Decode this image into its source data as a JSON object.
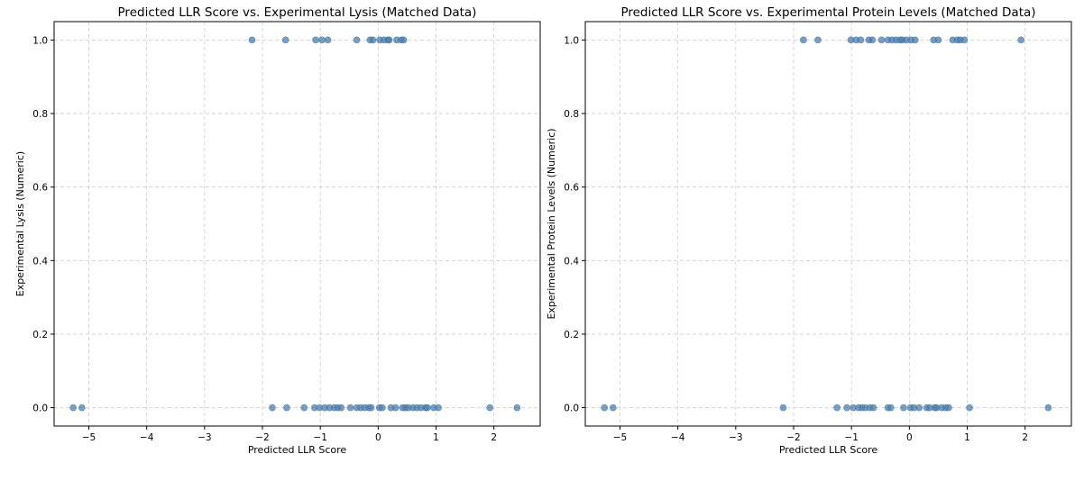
{
  "chart_data": [
    {
      "type": "scatter",
      "title": "Predicted LLR Score vs. Experimental Lysis (Matched Data)",
      "xlabel": "Predicted LLR Score",
      "ylabel": "Experimental Lysis (Numeric)",
      "xlim": [
        -5.6,
        2.8
      ],
      "ylim": [
        -0.05,
        1.05
      ],
      "xticks": [
        -5,
        -4,
        -3,
        -2,
        -1,
        0,
        1,
        2
      ],
      "yticks": [
        0.0,
        0.2,
        0.4,
        0.6,
        0.8,
        1.0
      ],
      "xtick_labels": [
        "−5",
        "−4",
        "−3",
        "−2",
        "−1",
        "0",
        "1",
        "2"
      ],
      "ytick_labels": [
        "0.0",
        "0.2",
        "0.4",
        "0.6",
        "0.8",
        "1.0"
      ],
      "grid": true,
      "points": [
        {
          "x": -2.18,
          "y": 1
        },
        {
          "x": -1.6,
          "y": 1
        },
        {
          "x": -1.08,
          "y": 1
        },
        {
          "x": -0.97,
          "y": 1
        },
        {
          "x": -0.87,
          "y": 1
        },
        {
          "x": -0.37,
          "y": 1
        },
        {
          "x": -0.14,
          "y": 1
        },
        {
          "x": -0.09,
          "y": 1
        },
        {
          "x": 0.03,
          "y": 1
        },
        {
          "x": 0.1,
          "y": 1
        },
        {
          "x": 0.17,
          "y": 1
        },
        {
          "x": 0.19,
          "y": 1
        },
        {
          "x": 0.32,
          "y": 1
        },
        {
          "x": 0.4,
          "y": 1
        },
        {
          "x": 0.44,
          "y": 1
        },
        {
          "x": -5.27,
          "y": 0
        },
        {
          "x": -5.12,
          "y": 0
        },
        {
          "x": -1.83,
          "y": 0
        },
        {
          "x": -1.58,
          "y": 0
        },
        {
          "x": -1.28,
          "y": 0
        },
        {
          "x": -1.1,
          "y": 0
        },
        {
          "x": -1.01,
          "y": 0
        },
        {
          "x": -0.92,
          "y": 0
        },
        {
          "x": -0.84,
          "y": 0
        },
        {
          "x": -0.76,
          "y": 0
        },
        {
          "x": -0.7,
          "y": 0
        },
        {
          "x": -0.64,
          "y": 0
        },
        {
          "x": -0.48,
          "y": 0
        },
        {
          "x": -0.37,
          "y": 0
        },
        {
          "x": -0.3,
          "y": 0
        },
        {
          "x": -0.23,
          "y": 0
        },
        {
          "x": -0.16,
          "y": 0
        },
        {
          "x": -0.12,
          "y": 0
        },
        {
          "x": 0.02,
          "y": 0
        },
        {
          "x": 0.07,
          "y": 0
        },
        {
          "x": 0.22,
          "y": 0
        },
        {
          "x": 0.3,
          "y": 0
        },
        {
          "x": 0.42,
          "y": 0
        },
        {
          "x": 0.47,
          "y": 0
        },
        {
          "x": 0.52,
          "y": 0
        },
        {
          "x": 0.6,
          "y": 0
        },
        {
          "x": 0.67,
          "y": 0
        },
        {
          "x": 0.74,
          "y": 0
        },
        {
          "x": 0.82,
          "y": 0
        },
        {
          "x": 0.85,
          "y": 0
        },
        {
          "x": 0.96,
          "y": 0
        },
        {
          "x": 1.04,
          "y": 0
        },
        {
          "x": 1.93,
          "y": 0
        },
        {
          "x": 2.4,
          "y": 0
        }
      ]
    },
    {
      "type": "scatter",
      "title": "Predicted LLR Score vs. Experimental Protein Levels (Matched Data)",
      "xlabel": "Predicted LLR Score",
      "ylabel": "Experimental Protein Levels (Numeric)",
      "xlim": [
        -5.6,
        2.8
      ],
      "ylim": [
        -0.05,
        1.05
      ],
      "xticks": [
        -5,
        -4,
        -3,
        -2,
        -1,
        0,
        1,
        2
      ],
      "yticks": [
        0.0,
        0.2,
        0.4,
        0.6,
        0.8,
        1.0
      ],
      "xtick_labels": [
        "−5",
        "−4",
        "−3",
        "−2",
        "−1",
        "0",
        "1",
        "2"
      ],
      "ytick_labels": [
        "0.0",
        "0.2",
        "0.4",
        "0.6",
        "0.8",
        "1.0"
      ],
      "grid": true,
      "points": [
        {
          "x": -1.83,
          "y": 1
        },
        {
          "x": -1.58,
          "y": 1
        },
        {
          "x": -1.01,
          "y": 1
        },
        {
          "x": -0.92,
          "y": 1
        },
        {
          "x": -0.84,
          "y": 1
        },
        {
          "x": -0.7,
          "y": 1
        },
        {
          "x": -0.64,
          "y": 1
        },
        {
          "x": -0.48,
          "y": 1
        },
        {
          "x": -0.37,
          "y": 1
        },
        {
          "x": -0.3,
          "y": 1
        },
        {
          "x": -0.23,
          "y": 1
        },
        {
          "x": -0.16,
          "y": 1
        },
        {
          "x": -0.12,
          "y": 1
        },
        {
          "x": -0.05,
          "y": 1
        },
        {
          "x": 0.03,
          "y": 1
        },
        {
          "x": 0.1,
          "y": 1
        },
        {
          "x": 0.42,
          "y": 1
        },
        {
          "x": 0.5,
          "y": 1
        },
        {
          "x": 0.75,
          "y": 1
        },
        {
          "x": 0.83,
          "y": 1
        },
        {
          "x": 0.88,
          "y": 1
        },
        {
          "x": 0.95,
          "y": 1
        },
        {
          "x": 1.93,
          "y": 1
        },
        {
          "x": -5.27,
          "y": 0
        },
        {
          "x": -5.12,
          "y": 0
        },
        {
          "x": -2.18,
          "y": 0
        },
        {
          "x": -1.25,
          "y": 0
        },
        {
          "x": -1.08,
          "y": 0
        },
        {
          "x": -0.97,
          "y": 0
        },
        {
          "x": -0.88,
          "y": 0
        },
        {
          "x": -0.82,
          "y": 0
        },
        {
          "x": -0.76,
          "y": 0
        },
        {
          "x": -0.68,
          "y": 0
        },
        {
          "x": -0.62,
          "y": 0
        },
        {
          "x": -0.37,
          "y": 0
        },
        {
          "x": -0.32,
          "y": 0
        },
        {
          "x": -0.1,
          "y": 0
        },
        {
          "x": 0.02,
          "y": 0
        },
        {
          "x": 0.08,
          "y": 0
        },
        {
          "x": 0.17,
          "y": 0
        },
        {
          "x": 0.3,
          "y": 0
        },
        {
          "x": 0.35,
          "y": 0
        },
        {
          "x": 0.44,
          "y": 0
        },
        {
          "x": 0.47,
          "y": 0
        },
        {
          "x": 0.56,
          "y": 0
        },
        {
          "x": 0.63,
          "y": 0
        },
        {
          "x": 0.68,
          "y": 0
        },
        {
          "x": 1.04,
          "y": 0
        },
        {
          "x": 2.4,
          "y": 0
        }
      ]
    }
  ]
}
